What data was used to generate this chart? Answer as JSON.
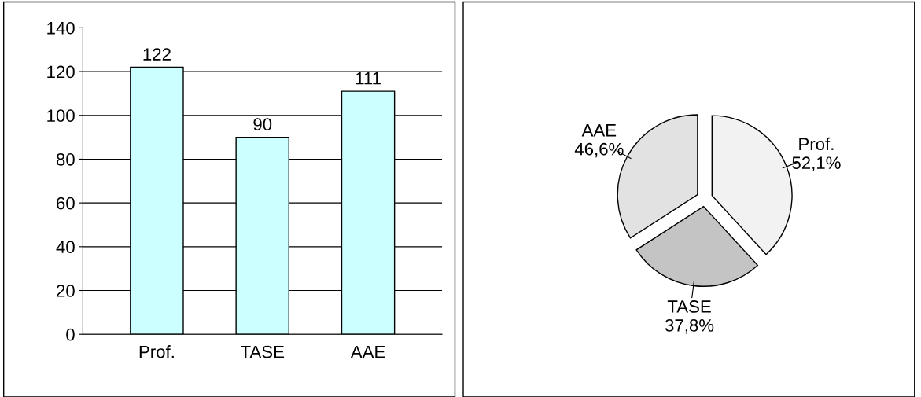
{
  "chart_data": [
    {
      "type": "bar",
      "categories": [
        "Prof.",
        "TASE",
        "AAE"
      ],
      "values": [
        122,
        90,
        111
      ],
      "color": "#ccffff",
      "ylim": [
        0,
        140
      ],
      "yticks": [
        0,
        20,
        40,
        60,
        80,
        100,
        120,
        140
      ],
      "grid": "y",
      "data_labels": true
    },
    {
      "type": "pie",
      "categories": [
        "Prof.",
        "TASE",
        "AAE"
      ],
      "values": [
        52.1,
        37.8,
        46.6
      ],
      "value_labels": [
        "52,1%",
        "37,8%",
        "46,6%"
      ],
      "colors": [
        "#f2f2f2",
        "#c4c4c4",
        "#e2e2e2"
      ]
    }
  ]
}
